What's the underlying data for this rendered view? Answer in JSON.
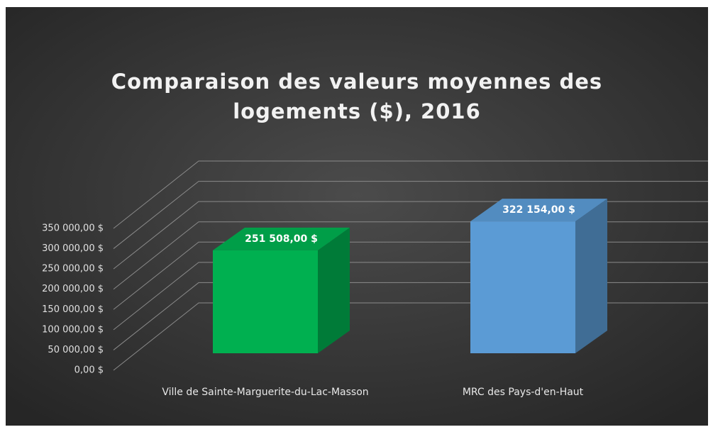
{
  "chart_data": {
    "type": "bar3d",
    "title": "Comparaison des valeurs moyennes des logements ($), 2016",
    "categories": [
      "Ville de Sainte-Marguerite-du-Lac-Masson",
      "MRC des Pays-d'en-Haut"
    ],
    "values": [
      251508,
      322154
    ],
    "value_labels": [
      "251 508,00 $",
      "322 154,00 $"
    ],
    "colors": [
      "#00b050",
      "#5b9bd5"
    ],
    "ylim": [
      0,
      350000
    ],
    "yticks": [
      {
        "value": 0,
        "label": "0,00 $"
      },
      {
        "value": 50000,
        "label": "50 000,00 $"
      },
      {
        "value": 100000,
        "label": "100 000,00 $"
      },
      {
        "value": 150000,
        "label": "150 000,00 $"
      },
      {
        "value": 200000,
        "label": "200 000,00 $"
      },
      {
        "value": 250000,
        "label": "250 000,00 $"
      },
      {
        "value": 300000,
        "label": "300 000,00 $"
      },
      {
        "value": 350000,
        "label": "350 000,00 $"
      }
    ],
    "grid": true
  }
}
